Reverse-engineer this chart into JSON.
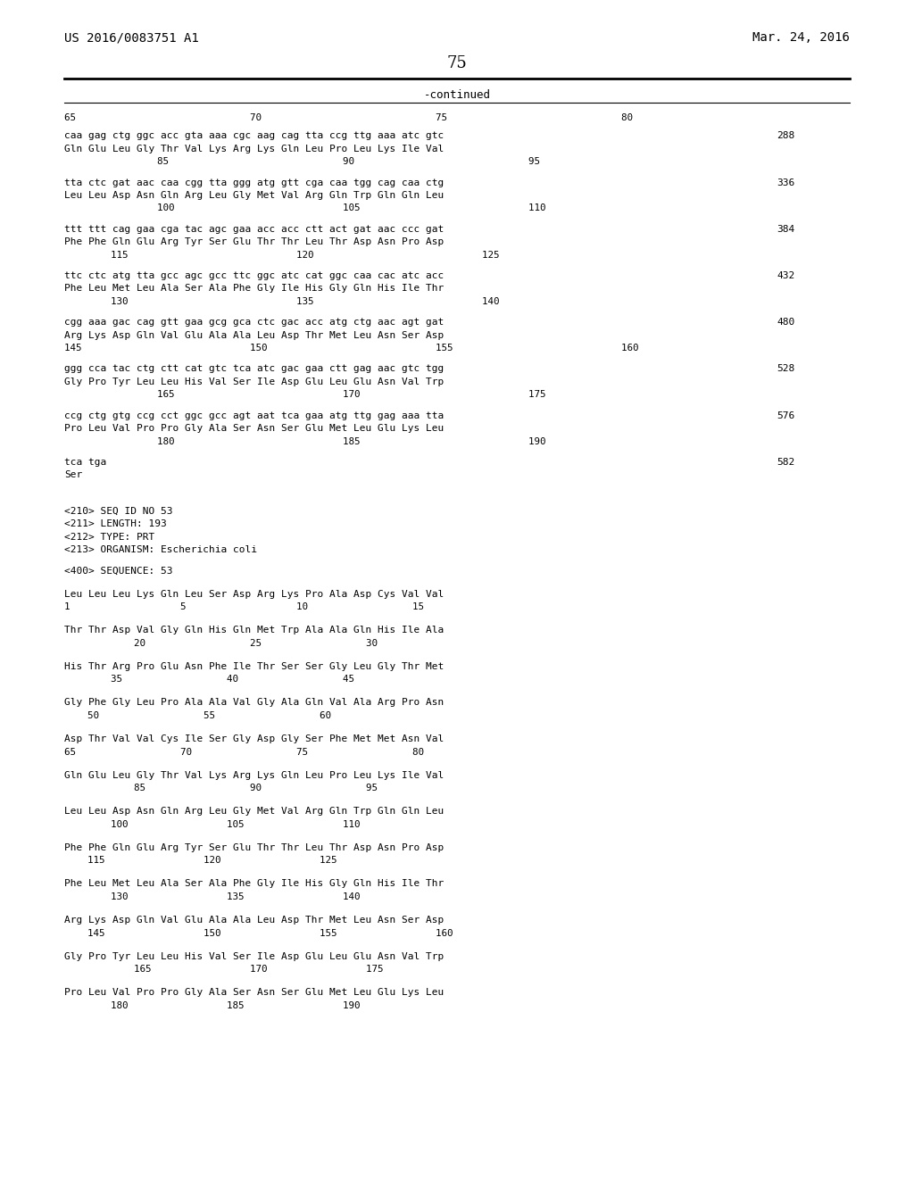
{
  "header_left": "US 2016/0083751 A1",
  "header_right": "Mar. 24, 2016",
  "page_number": "75",
  "continued_label": "-continued",
  "background_color": "#ffffff",
  "text_color": "#000000",
  "dna_blocks": [
    {
      "dna": "caa gag ctg ggc acc gta aaa cgc aag cag tta ccg ttg aaa atc gtc",
      "num": "288",
      "prt": "Gln Glu Leu Gly Thr Val Lys Arg Lys Gln Leu Pro Leu Lys Ile Val",
      "ruler": "                85                              90                              95"
    },
    {
      "dna": "tta ctc gat aac caa cgg tta ggg atg gtt cga caa tgg cag caa ctg",
      "num": "336",
      "prt": "Leu Leu Asp Asn Gln Arg Leu Gly Met Val Arg Gln Trp Gln Gln Leu",
      "ruler": "                100                             105                             110"
    },
    {
      "dna": "ttt ttt cag gaa cga tac agc gaa acc acc ctt act gat aac ccc gat",
      "num": "384",
      "prt": "Phe Phe Gln Glu Arg Tyr Ser Glu Thr Thr Leu Thr Asp Asn Pro Asp",
      "ruler": "        115                             120                             125"
    },
    {
      "dna": "ttc ctc atg tta gcc agc gcc ttc ggc atc cat ggc caa cac atc acc",
      "num": "432",
      "prt": "Phe Leu Met Leu Ala Ser Ala Phe Gly Ile His Gly Gln His Ile Thr",
      "ruler": "        130                             135                             140"
    },
    {
      "dna": "cgg aaa gac cag gtt gaa gcg gca ctc gac acc atg ctg aac agt gat",
      "num": "480",
      "prt": "Arg Lys Asp Gln Val Glu Ala Ala Leu Asp Thr Met Leu Asn Ser Asp",
      "ruler": "145                             150                             155                             160"
    },
    {
      "dna": "ggg cca tac ctg ctt cat gtc tca atc gac gaa ctt gag aac gtc tgg",
      "num": "528",
      "prt": "Gly Pro Tyr Leu Leu His Val Ser Ile Asp Glu Leu Glu Asn Val Trp",
      "ruler": "                165                             170                             175"
    },
    {
      "dna": "ccg ctg gtg ccg cct ggc gcc agt aat tca gaa atg ttg gag aaa tta",
      "num": "576",
      "prt": "Pro Leu Val Pro Pro Gly Ala Ser Asn Ser Glu Met Leu Glu Lys Leu",
      "ruler": "                180                             185                             190"
    }
  ],
  "top_ruler": "65                              70                              75                              80",
  "last_dna": "tca tga",
  "last_num": "582",
  "last_prt": "Ser",
  "meta": [
    "<210> SEQ ID NO 53",
    "<211> LENGTH: 193",
    "<212> TYPE: PRT",
    "<213> ORGANISM: Escherichia coli"
  ],
  "seq_header": "<400> SEQUENCE: 53",
  "prt_blocks": [
    {
      "seq": "Leu Leu Leu Lys Gln Leu Ser Asp Arg Lys Pro Ala Asp Cys Val Val",
      "ruler": "1                   5                   10                  15"
    },
    {
      "seq": "Thr Thr Asp Val Gly Gln His Gln Met Trp Ala Ala Gln His Ile Ala",
      "ruler": "            20                  25                  30"
    },
    {
      "seq": "His Thr Arg Pro Glu Asn Phe Ile Thr Ser Ser Gly Leu Gly Thr Met",
      "ruler": "        35                  40                  45"
    },
    {
      "seq": "Gly Phe Gly Leu Pro Ala Ala Val Gly Ala Gln Val Ala Arg Pro Asn",
      "ruler": "    50                  55                  60"
    },
    {
      "seq": "Asp Thr Val Val Cys Ile Ser Gly Asp Gly Ser Phe Met Met Asn Val",
      "ruler": "65                  70                  75                  80"
    },
    {
      "seq": "Gln Glu Leu Gly Thr Val Lys Arg Lys Gln Leu Pro Leu Lys Ile Val",
      "ruler": "            85                  90                  95"
    },
    {
      "seq": "Leu Leu Asp Asn Gln Arg Leu Gly Met Val Arg Gln Trp Gln Gln Leu",
      "ruler": "        100                 105                 110"
    },
    {
      "seq": "Phe Phe Gln Glu Arg Tyr Ser Glu Thr Thr Leu Thr Asp Asn Pro Asp",
      "ruler": "    115                 120                 125"
    },
    {
      "seq": "Phe Leu Met Leu Ala Ser Ala Phe Gly Ile His Gly Gln His Ile Thr",
      "ruler": "        130                 135                 140"
    },
    {
      "seq": "Arg Lys Asp Gln Val Glu Ala Ala Leu Asp Thr Met Leu Asn Ser Asp",
      "ruler": "    145                 150                 155                 160"
    },
    {
      "seq": "Gly Pro Tyr Leu Leu His Val Ser Ile Asp Glu Leu Glu Asn Val Trp",
      "ruler": "            165                 170                 175"
    },
    {
      "seq": "Pro Leu Val Pro Pro Gly Ala Ser Asn Ser Glu Met Leu Glu Lys Leu",
      "ruler": "        180                 185                 190"
    }
  ]
}
